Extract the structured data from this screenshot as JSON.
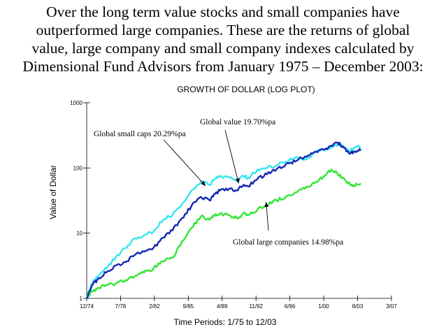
{
  "heading": {
    "lines": [
      "Over the long term value stocks and small companies have",
      "outperformed large companies.  These are the returns of global",
      "value, large company and small company indexes calculated by",
      "Dimensional Fund Advisors from January 1975 – December 2003:"
    ]
  },
  "chart_data": {
    "type": "line",
    "title": "GROWTH OF DOLLAR (LOG PLOT)",
    "xlabel": "Time Periods:  1/75 to 12/03",
    "ylabel": "Value of Dollar",
    "y_scale": "log",
    "ylim": [
      1,
      1000
    ],
    "y_ticks": [
      1,
      10,
      100,
      1000
    ],
    "y_tick_labels": [
      "1",
      "10",
      "100",
      "1000"
    ],
    "xlim": [
      1974.917,
      2007.167
    ],
    "x_ticks": [
      1974.917,
      1978.5,
      1982.083,
      1985.667,
      1989.25,
      1992.833,
      1996.417,
      2000.0,
      2003.583,
      2007.167
    ],
    "x_tick_labels": [
      "12/74",
      "7/78",
      "2/82",
      "9/85",
      "4/89",
      "11/92",
      "6/96",
      "1/00",
      "8/03",
      "3/07"
    ],
    "series": [
      {
        "name": "Global small caps 20.29%pa",
        "color": "#33e6f0",
        "x": [
          1974.917,
          1975.5,
          1976.0,
          1977.0,
          1978.0,
          1979.0,
          1980.0,
          1981.0,
          1982.0,
          1983.0,
          1984.0,
          1985.0,
          1986.0,
          1987.0,
          1987.9,
          1988.5,
          1989.0,
          1990.0,
          1990.8,
          1991.5,
          1992.0,
          1993.0,
          1994.0,
          1995.0,
          1996.0,
          1997.0,
          1998.0,
          1999.0,
          2000.0,
          2000.8,
          2001.5,
          2002.0,
          2002.8,
          2003.2,
          2003.917
        ],
        "values": [
          1.0,
          1.7,
          2.1,
          2.9,
          4.3,
          5.9,
          8.3,
          9.3,
          10.7,
          16.0,
          19.0,
          28.0,
          45.0,
          62.0,
          55.0,
          68.0,
          75.0,
          72.0,
          63.0,
          75.0,
          70.0,
          95.0,
          100.0,
          110.0,
          125.0,
          145.0,
          135.0,
          170.0,
          190.0,
          210.0,
          235.0,
          220.0,
          180.0,
          205.0,
          210.0
        ]
      },
      {
        "name": "Global value 19.70%pa",
        "color": "#1428b4",
        "x": [
          1974.917,
          1975.5,
          1976.0,
          1977.0,
          1978.0,
          1979.0,
          1980.0,
          1981.0,
          1982.0,
          1983.0,
          1984.0,
          1985.0,
          1986.0,
          1987.0,
          1987.9,
          1988.5,
          1989.0,
          1990.0,
          1990.8,
          1991.5,
          1992.0,
          1993.0,
          1994.0,
          1995.0,
          1996.0,
          1997.0,
          1998.0,
          1999.0,
          2000.0,
          2000.8,
          2001.5,
          2002.0,
          2002.8,
          2003.2,
          2003.917
        ],
        "values": [
          1.0,
          1.6,
          1.9,
          2.5,
          3.2,
          3.6,
          4.6,
          5.2,
          6.0,
          8.5,
          11.0,
          17.0,
          26.0,
          36.0,
          32.0,
          40.0,
          45.0,
          48.0,
          45.0,
          55.0,
          52.0,
          68.0,
          80.0,
          95.0,
          115.0,
          125.0,
          150.0,
          175.0,
          190.0,
          220.0,
          240.0,
          215.0,
          165.0,
          175.0,
          185.0
        ]
      },
      {
        "name": "Global large companies 14.98%pa",
        "color": "#33e633",
        "x": [
          1974.917,
          1975.5,
          1976.0,
          1977.0,
          1978.0,
          1979.0,
          1980.0,
          1981.0,
          1982.0,
          1983.0,
          1984.0,
          1985.0,
          1986.0,
          1987.0,
          1987.9,
          1988.5,
          1989.0,
          1990.0,
          1990.8,
          1991.5,
          1992.0,
          1993.0,
          1994.0,
          1995.0,
          1996.0,
          1997.0,
          1998.0,
          1999.0,
          2000.0,
          2000.8,
          2001.5,
          2002.0,
          2002.8,
          2003.2,
          2003.917
        ],
        "values": [
          1.0,
          1.3,
          1.4,
          1.6,
          1.7,
          1.9,
          2.2,
          2.5,
          2.9,
          3.7,
          4.2,
          7.5,
          12.0,
          18.0,
          16.0,
          19.0,
          20.0,
          19.0,
          17.0,
          20.0,
          19.0,
          23.0,
          27.0,
          32.0,
          36.0,
          42.0,
          48.0,
          58.0,
          75.0,
          95.0,
          80.0,
          70.0,
          55.0,
          53.0,
          58.0
        ]
      }
    ],
    "annotations": [
      {
        "text": "Global small caps 20.29%pa",
        "arrow_to_x": 1987.5,
        "arrow_to_y": 53
      },
      {
        "text": "Global value 19.70%pa",
        "arrow_to_x": 1991.0,
        "arrow_to_y": 58
      },
      {
        "text": "Global large companies 14.98%pa",
        "arrow_to_x": 1993.9,
        "arrow_to_y": 30
      }
    ],
    "grid": false,
    "legend": "none"
  }
}
